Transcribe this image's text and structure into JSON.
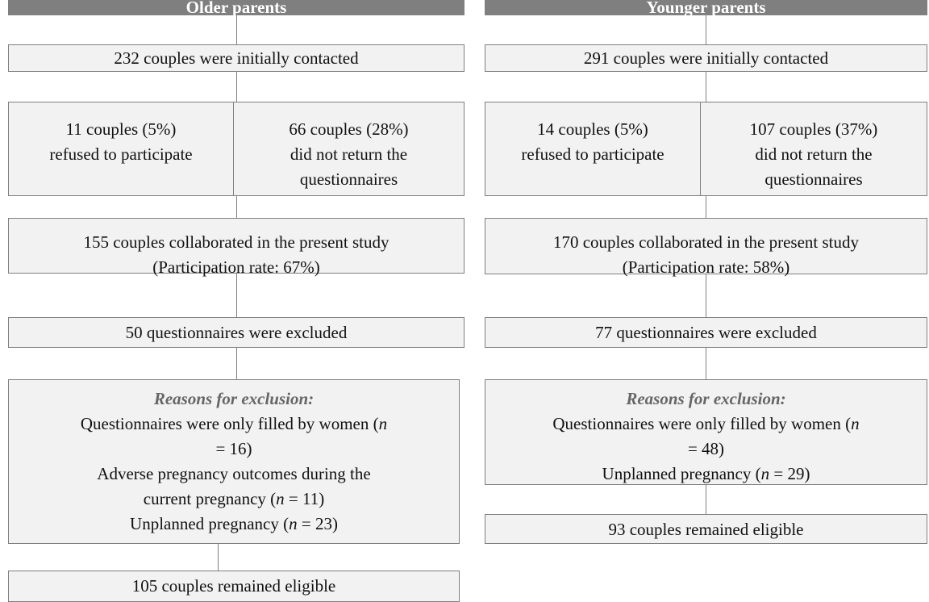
{
  "columns": [
    {
      "header": "Older parents",
      "boxes": [
        {
          "cells": [
            {
              "lines": [
                [
                  "232 couples were initially contacted"
                ]
              ]
            }
          ]
        },
        {
          "cells": [
            {
              "lines": [
                [
                  "11 couples (5%)"
                ],
                [
                  "refused to participate"
                ]
              ]
            },
            {
              "lines": [
                [
                  "66 couples (28%)"
                ],
                [
                  "did not return the"
                ],
                [
                  "questionnaires"
                ]
              ]
            }
          ]
        },
        {
          "cells": [
            {
              "lines": [
                [
                  "155 couples collaborated in the present study"
                ],
                [
                  "(Participation rate: 67%)"
                ]
              ]
            }
          ]
        },
        {
          "cells": [
            {
              "lines": [
                [
                  "50 questionnaires were excluded"
                ]
              ]
            }
          ]
        },
        {
          "cells": [
            {
              "lines": [
                [
                  {
                    "text": "Reasons for exclusion:",
                    "italic": true,
                    "bold": true,
                    "color": "#666"
                  }
                ],
                [
                  "Questionnaires were only filled by women (",
                  {
                    "text": "n",
                    "italic": true
                  }
                ],
                [
                  "= 16)"
                ],
                [
                  "Adverse pregnancy outcomes during the"
                ],
                [
                  "current pregnancy (",
                  {
                    "text": "n",
                    "italic": true
                  },
                  " = 11)"
                ],
                [
                  "Unplanned pregnancy (",
                  {
                    "text": "n",
                    "italic": true
                  },
                  " = 23)"
                ]
              ]
            }
          ]
        },
        {
          "cells": [
            {
              "lines": [
                [
                  "105 couples remained eligible"
                ]
              ]
            }
          ]
        }
      ]
    },
    {
      "header": "Younger parents",
      "boxes": [
        {
          "cells": [
            {
              "lines": [
                [
                  "291 couples were initially contacted"
                ]
              ]
            }
          ]
        },
        {
          "cells": [
            {
              "lines": [
                [
                  "14 couples (5%)"
                ],
                [
                  "refused to participate"
                ]
              ]
            },
            {
              "lines": [
                [
                  "107 couples (37%)"
                ],
                [
                  "did not return the"
                ],
                [
                  "questionnaires"
                ]
              ]
            }
          ]
        },
        {
          "cells": [
            {
              "lines": [
                [
                  "170 couples collaborated in the present study"
                ],
                [
                  "(Participation rate: 58%)"
                ]
              ]
            }
          ]
        },
        {
          "cells": [
            {
              "lines": [
                [
                  "77 questionnaires were excluded"
                ]
              ]
            }
          ]
        },
        {
          "cells": [
            {
              "lines": [
                [
                  {
                    "text": "Reasons for exclusion:",
                    "italic": true,
                    "bold": true,
                    "color": "#666"
                  }
                ],
                [
                  "Questionnaires were only filled by women (",
                  {
                    "text": "n",
                    "italic": true
                  }
                ],
                [
                  "= 48)"
                ],
                [
                  "Unplanned pregnancy (",
                  {
                    "text": "n",
                    "italic": true
                  },
                  " = 29)"
                ]
              ]
            }
          ]
        },
        {
          "cells": [
            {
              "lines": [
                [
                  "93 couples remained eligible"
                ]
              ]
            }
          ]
        }
      ]
    }
  ]
}
